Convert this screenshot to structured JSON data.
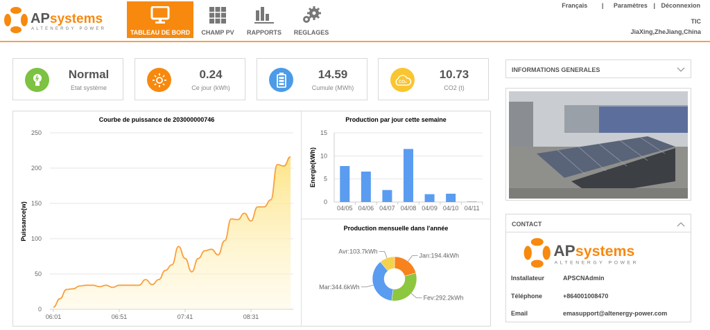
{
  "brand": {
    "name": "APsystems",
    "tagline": "ALTENERGY POWER",
    "colors": {
      "orange": "#f7890f",
      "gray": "#555555"
    }
  },
  "nav": [
    {
      "label": "TABLEAU DE BORD",
      "icon": "monitor-icon",
      "active": true
    },
    {
      "label": "CHAMP PV",
      "icon": "solar-grid-icon",
      "active": false
    },
    {
      "label": "RAPPORTS",
      "icon": "bar-chart-icon",
      "active": false
    },
    {
      "label": "REGLAGES",
      "icon": "gears-icon",
      "active": false
    }
  ],
  "top_links": {
    "language": "Français",
    "sep1": "|",
    "settings": "Paramètres",
    "sep2": "|",
    "logout": "Déconnexion"
  },
  "user": {
    "name": "TIC",
    "location": "JiaXing,ZheJiang,China"
  },
  "stats": [
    {
      "value": "Normal",
      "label": "Etat système",
      "icon": "lightbulb-icon",
      "color": "#7dc242"
    },
    {
      "value": "0.24",
      "label": "Ce jour (kWh)",
      "icon": "sun-icon",
      "color": "#f7890f"
    },
    {
      "value": "14.59",
      "label": "Cumule (MWh)",
      "icon": "battery-icon",
      "color": "#4b9be8"
    },
    {
      "value": "10.73",
      "label": "CO2 (t)",
      "icon": "co2-cloud-icon",
      "color": "#f9c530"
    }
  ],
  "chart_data": [
    {
      "type": "area",
      "title": "Courbe de puissance de 203000000746",
      "ylabel": "Puissance(w)",
      "xlabel": "",
      "ylim": [
        0,
        250
      ],
      "yticks": [
        "0",
        "50",
        "100",
        "150",
        "200",
        "250"
      ],
      "xticks": [
        "06:01",
        "06:51",
        "07:41",
        "08:31"
      ],
      "grid": true,
      "color": "#f9a03f",
      "x": [
        "06:01",
        "06:06",
        "06:11",
        "06:16",
        "06:21",
        "06:26",
        "06:31",
        "06:36",
        "06:41",
        "06:46",
        "06:51",
        "06:56",
        "07:01",
        "07:06",
        "07:11",
        "07:16",
        "07:21",
        "07:26",
        "07:31",
        "07:36",
        "07:41",
        "07:46",
        "07:51",
        "07:56",
        "08:01",
        "08:06",
        "08:11",
        "08:16",
        "08:21",
        "08:26",
        "08:31",
        "08:36",
        "08:41",
        "08:46",
        "08:51",
        "08:56",
        "09:01"
      ],
      "values": [
        3,
        15,
        28,
        29,
        33,
        34,
        34,
        32,
        34,
        31,
        34,
        34,
        34,
        34,
        42,
        35,
        42,
        55,
        63,
        89,
        72,
        53,
        72,
        83,
        85,
        77,
        97,
        128,
        127,
        136,
        125,
        145,
        145,
        155,
        205,
        203,
        216
      ]
    },
    {
      "type": "bar",
      "title": "Production par jour cette semaine",
      "ylabel": "Energie(kWh)",
      "xlabel": "",
      "ylim": [
        0,
        15
      ],
      "yticks": [
        "0",
        "5",
        "10",
        "15"
      ],
      "grid": true,
      "color": "#5a9cf0",
      "categories": [
        "04/05",
        "04/06",
        "04/07",
        "04/08",
        "04/09",
        "04/10",
        "04/11"
      ],
      "values": [
        7.8,
        6.6,
        2.6,
        11.5,
        1.7,
        1.8,
        0.1
      ]
    },
    {
      "type": "pie",
      "title": "Production mensuelle dans l'année",
      "donut": true,
      "slices": [
        {
          "label": "Jan:194.4kWh",
          "name": "Jan",
          "value": 194.4,
          "color": "#f7821e"
        },
        {
          "label": "Fev:292.2kWh",
          "name": "Fev",
          "value": 292.2,
          "color": "#8dc63f"
        },
        {
          "label": "Mar:344.6kWh",
          "name": "Mar",
          "value": 344.6,
          "color": "#5a9cf0"
        },
        {
          "label": "Avr:103.7kWh",
          "name": "Avr",
          "value": 103.7,
          "color": "#f5d24d"
        }
      ]
    }
  ],
  "info": {
    "title": "INFORMATIONS GENERALES",
    "icon": "chevron-down-icon"
  },
  "contact": {
    "title": "CONTACT",
    "icon": "chevron-up-icon",
    "rows": [
      {
        "label": "Installateur",
        "value": "APSCNAdmin"
      },
      {
        "label": "Téléphone",
        "value": "+864001008470"
      },
      {
        "label": "Email",
        "value": "emasupport@altenergy-power.com"
      }
    ]
  }
}
